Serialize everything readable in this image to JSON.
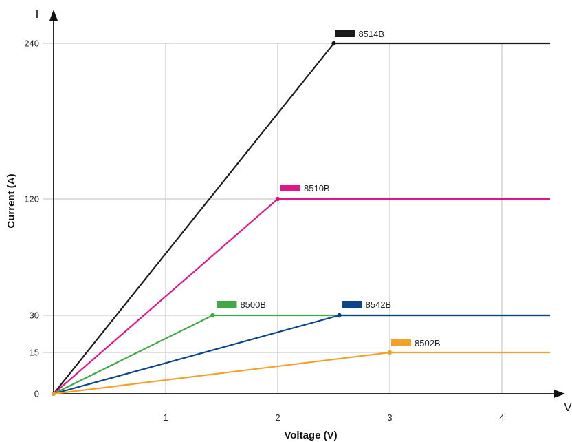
{
  "chart_data": {
    "type": "line",
    "xlabel": "Voltage (V)",
    "ylabel": "Current (A)",
    "x_axis_letter": "V",
    "y_axis_letter": "I",
    "xlim": [
      0,
      4.45
    ],
    "x_ticks": [
      1,
      2,
      3,
      4
    ],
    "y_ticks": [
      0,
      15,
      30,
      120,
      240
    ],
    "grid": true,
    "series": [
      {
        "name": "8514B",
        "color": "#1a1a1a",
        "points": [
          [
            0,
            0
          ],
          [
            2.5,
            240
          ],
          [
            4.45,
            240
          ]
        ]
      },
      {
        "name": "8510B",
        "color": "#e0168a",
        "points": [
          [
            0,
            0
          ],
          [
            2.0,
            120
          ],
          [
            4.45,
            120
          ]
        ]
      },
      {
        "name": "8500B",
        "color": "#43a847",
        "points": [
          [
            0,
            0
          ],
          [
            1.42,
            30
          ],
          [
            4.45,
            30
          ]
        ]
      },
      {
        "name": "8542B",
        "color": "#0b4587",
        "points": [
          [
            0,
            0
          ],
          [
            2.55,
            30
          ],
          [
            4.45,
            30
          ]
        ]
      },
      {
        "name": "8502B",
        "color": "#f4a12c",
        "points": [
          [
            0,
            0
          ],
          [
            3.0,
            15
          ],
          [
            4.45,
            15
          ]
        ]
      }
    ]
  }
}
